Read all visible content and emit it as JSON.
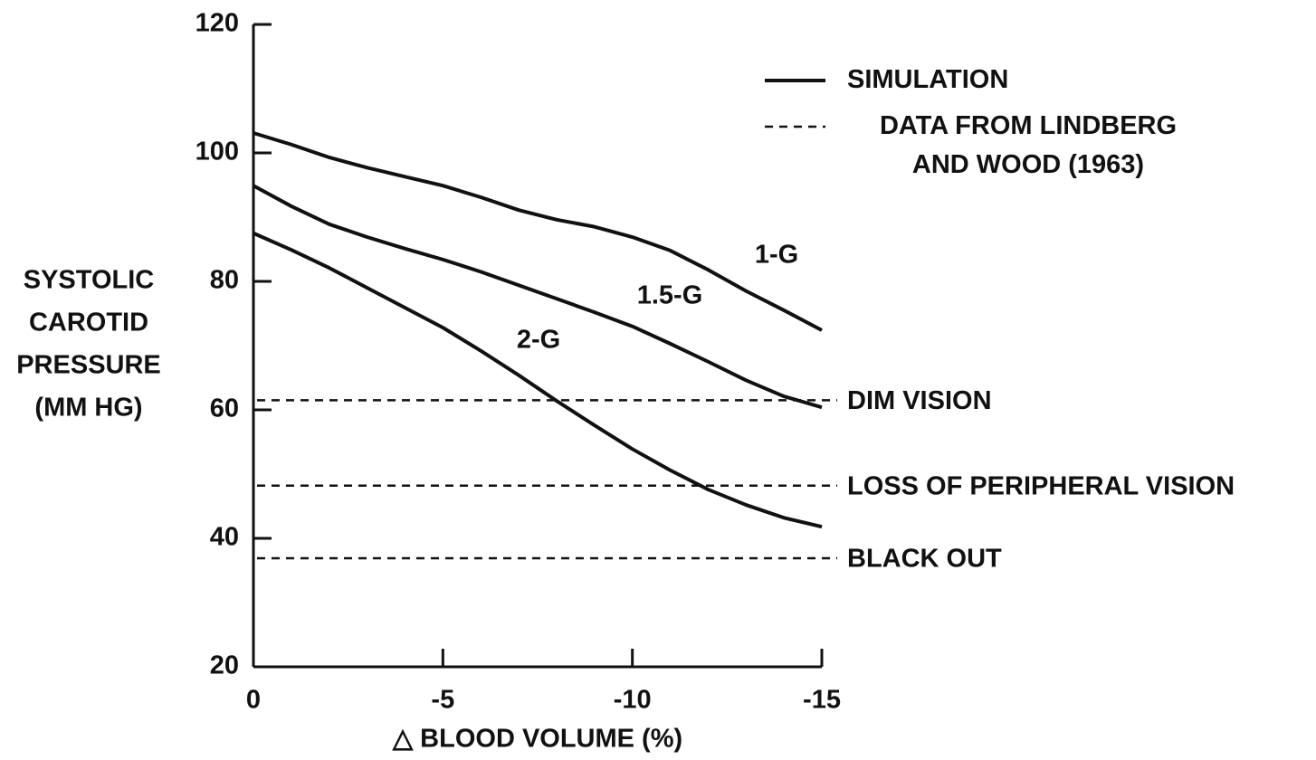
{
  "chart_data": {
    "type": "line",
    "x_label": "△ BLOOD VOLUME (%)",
    "y_label": [
      "SYSTOLIC",
      "CAROTID",
      "PRESSURE",
      "(MM HG)"
    ],
    "x": [
      0,
      -1,
      -2,
      -3,
      -4,
      -5,
      -6,
      -7,
      -8,
      -9,
      -10,
      -11,
      -12,
      -13,
      -14,
      -15
    ],
    "xlim": [
      0,
      -15
    ],
    "xticks": [
      0,
      -5,
      -10,
      -15
    ],
    "ylim": [
      20,
      120
    ],
    "yticks": [
      20,
      40,
      60,
      80,
      100,
      120
    ],
    "series": [
      {
        "name": "1-G",
        "color": "#111111",
        "values": [
          103.1,
          101.3,
          99.3,
          97.7,
          96.3,
          94.9,
          93.1,
          91.1,
          89.6,
          88.5,
          86.9,
          84.8,
          81.8,
          78.5,
          75.5,
          72.4
        ]
      },
      {
        "name": "1.5-G",
        "color": "#111111",
        "values": [
          94.9,
          91.7,
          88.9,
          86.9,
          85.1,
          83.4,
          81.5,
          79.4,
          77.3,
          75.2,
          73.0,
          70.3,
          67.5,
          64.6,
          62.1,
          60.4
        ]
      },
      {
        "name": "2-G",
        "color": "#111111",
        "values": [
          87.5,
          84.9,
          82.1,
          79.0,
          75.9,
          72.8,
          69.2,
          65.4,
          61.4,
          57.6,
          53.9,
          50.6,
          47.6,
          45.2,
          43.2,
          41.8
        ]
      }
    ],
    "thresholds": [
      {
        "label": "DIM VISION",
        "value": 61.5
      },
      {
        "label": "LOSS OF PERIPHERAL VISION",
        "value": 48.2
      },
      {
        "label": "BLACK OUT",
        "value": 36.9
      }
    ],
    "legend": [
      {
        "label": [
          "SIMULATION"
        ],
        "style": "solid"
      },
      {
        "label": [
          "DATA FROM LINDBERG",
          "AND WOOD (1963)"
        ],
        "style": "dashed"
      }
    ]
  }
}
